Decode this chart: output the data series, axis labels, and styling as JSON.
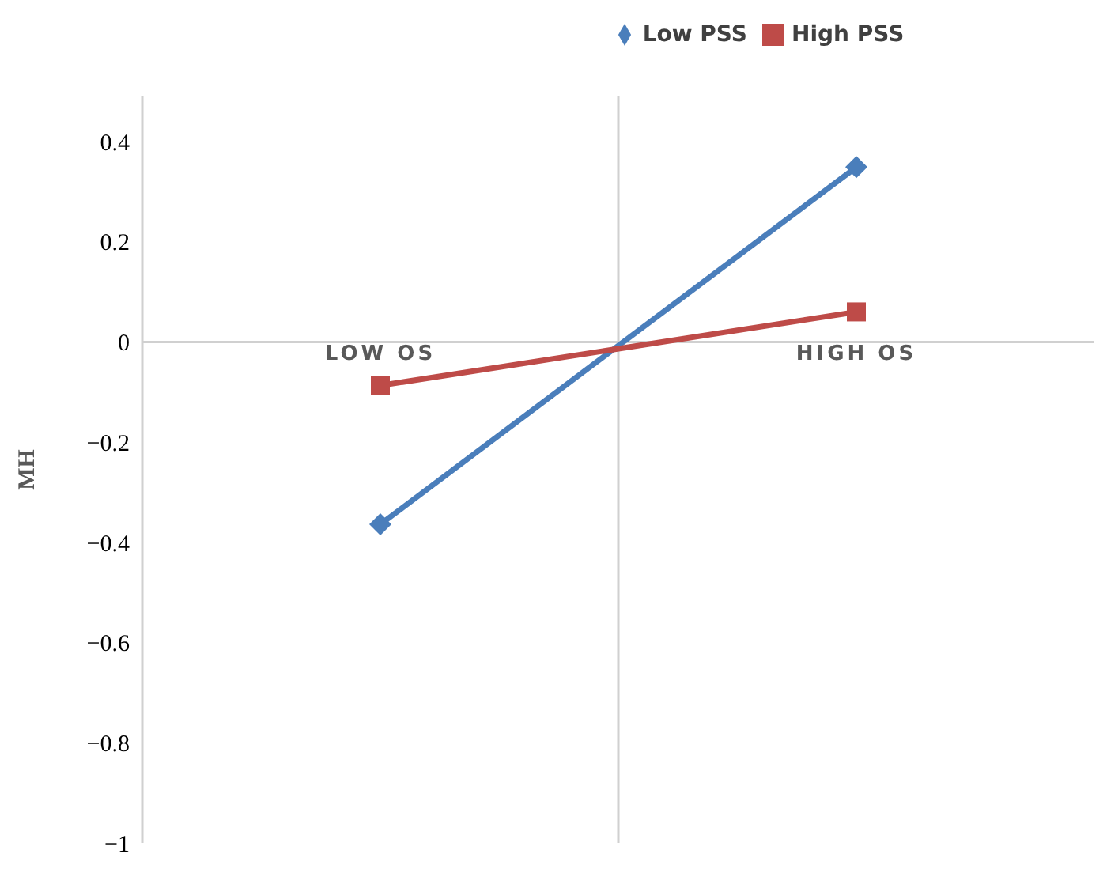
{
  "chart_data": {
    "type": "line",
    "ylabel": "MH",
    "categories": [
      "LOW OS",
      "HIGH OS"
    ],
    "series": [
      {
        "name": "Low PSS",
        "color": "#4a7ebb",
        "marker": "diamond",
        "values": [
          -0.364,
          0.349
        ]
      },
      {
        "name": "High PSS",
        "color": "#be4b48",
        "marker": "square",
        "values": [
          -0.087,
          0.06
        ]
      }
    ],
    "ylim": [
      -1,
      0.49
    ],
    "yticks": [
      -1,
      -0.8,
      -0.6,
      -0.4,
      -0.2,
      0,
      0.2,
      0.4
    ],
    "grid": "x",
    "legend": "top"
  }
}
